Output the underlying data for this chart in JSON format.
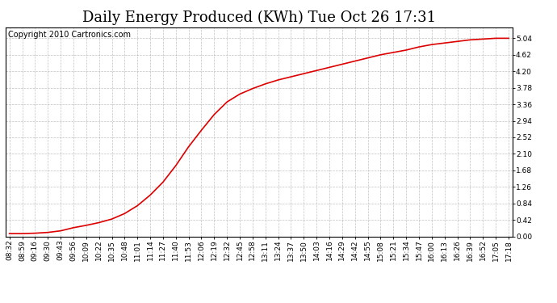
{
  "title": "Daily Energy Produced (KWh) Tue Oct 26 17:31",
  "copyright_text": "Copyright 2010 Cartronics.com",
  "line_color": "#dd0000",
  "background_color": "#ffffff",
  "plot_bg_color": "#ffffff",
  "grid_color": "#999999",
  "ylim": [
    0.0,
    5.32
  ],
  "yticks": [
    0.0,
    0.42,
    0.84,
    1.26,
    1.68,
    2.1,
    2.52,
    2.94,
    3.36,
    3.78,
    4.2,
    4.62,
    5.04
  ],
  "x_labels": [
    "08:32",
    "08:59",
    "09:16",
    "09:30",
    "09:43",
    "09:56",
    "10:09",
    "10:22",
    "10:35",
    "10:48",
    "11:01",
    "11:14",
    "11:27",
    "11:40",
    "11:53",
    "12:06",
    "12:19",
    "12:32",
    "12:45",
    "12:58",
    "13:11",
    "13:24",
    "13:37",
    "13:50",
    "14:03",
    "14:16",
    "14:29",
    "14:42",
    "14:55",
    "15:08",
    "15:21",
    "15:34",
    "15:47",
    "16:00",
    "16:13",
    "16:26",
    "16:39",
    "16:52",
    "17:05",
    "17:18"
  ],
  "y_values": [
    0.07,
    0.07,
    0.08,
    0.1,
    0.14,
    0.22,
    0.28,
    0.35,
    0.44,
    0.58,
    0.78,
    1.05,
    1.38,
    1.8,
    2.28,
    2.7,
    3.1,
    3.42,
    3.62,
    3.76,
    3.88,
    3.98,
    4.06,
    4.14,
    4.22,
    4.3,
    4.38,
    4.46,
    4.54,
    4.62,
    4.68,
    4.74,
    4.82,
    4.88,
    4.92,
    4.96,
    5.0,
    5.02,
    5.04,
    5.04
  ],
  "title_fontsize": 13,
  "tick_fontsize": 6.5,
  "copyright_fontsize": 7,
  "line_width": 1.2
}
